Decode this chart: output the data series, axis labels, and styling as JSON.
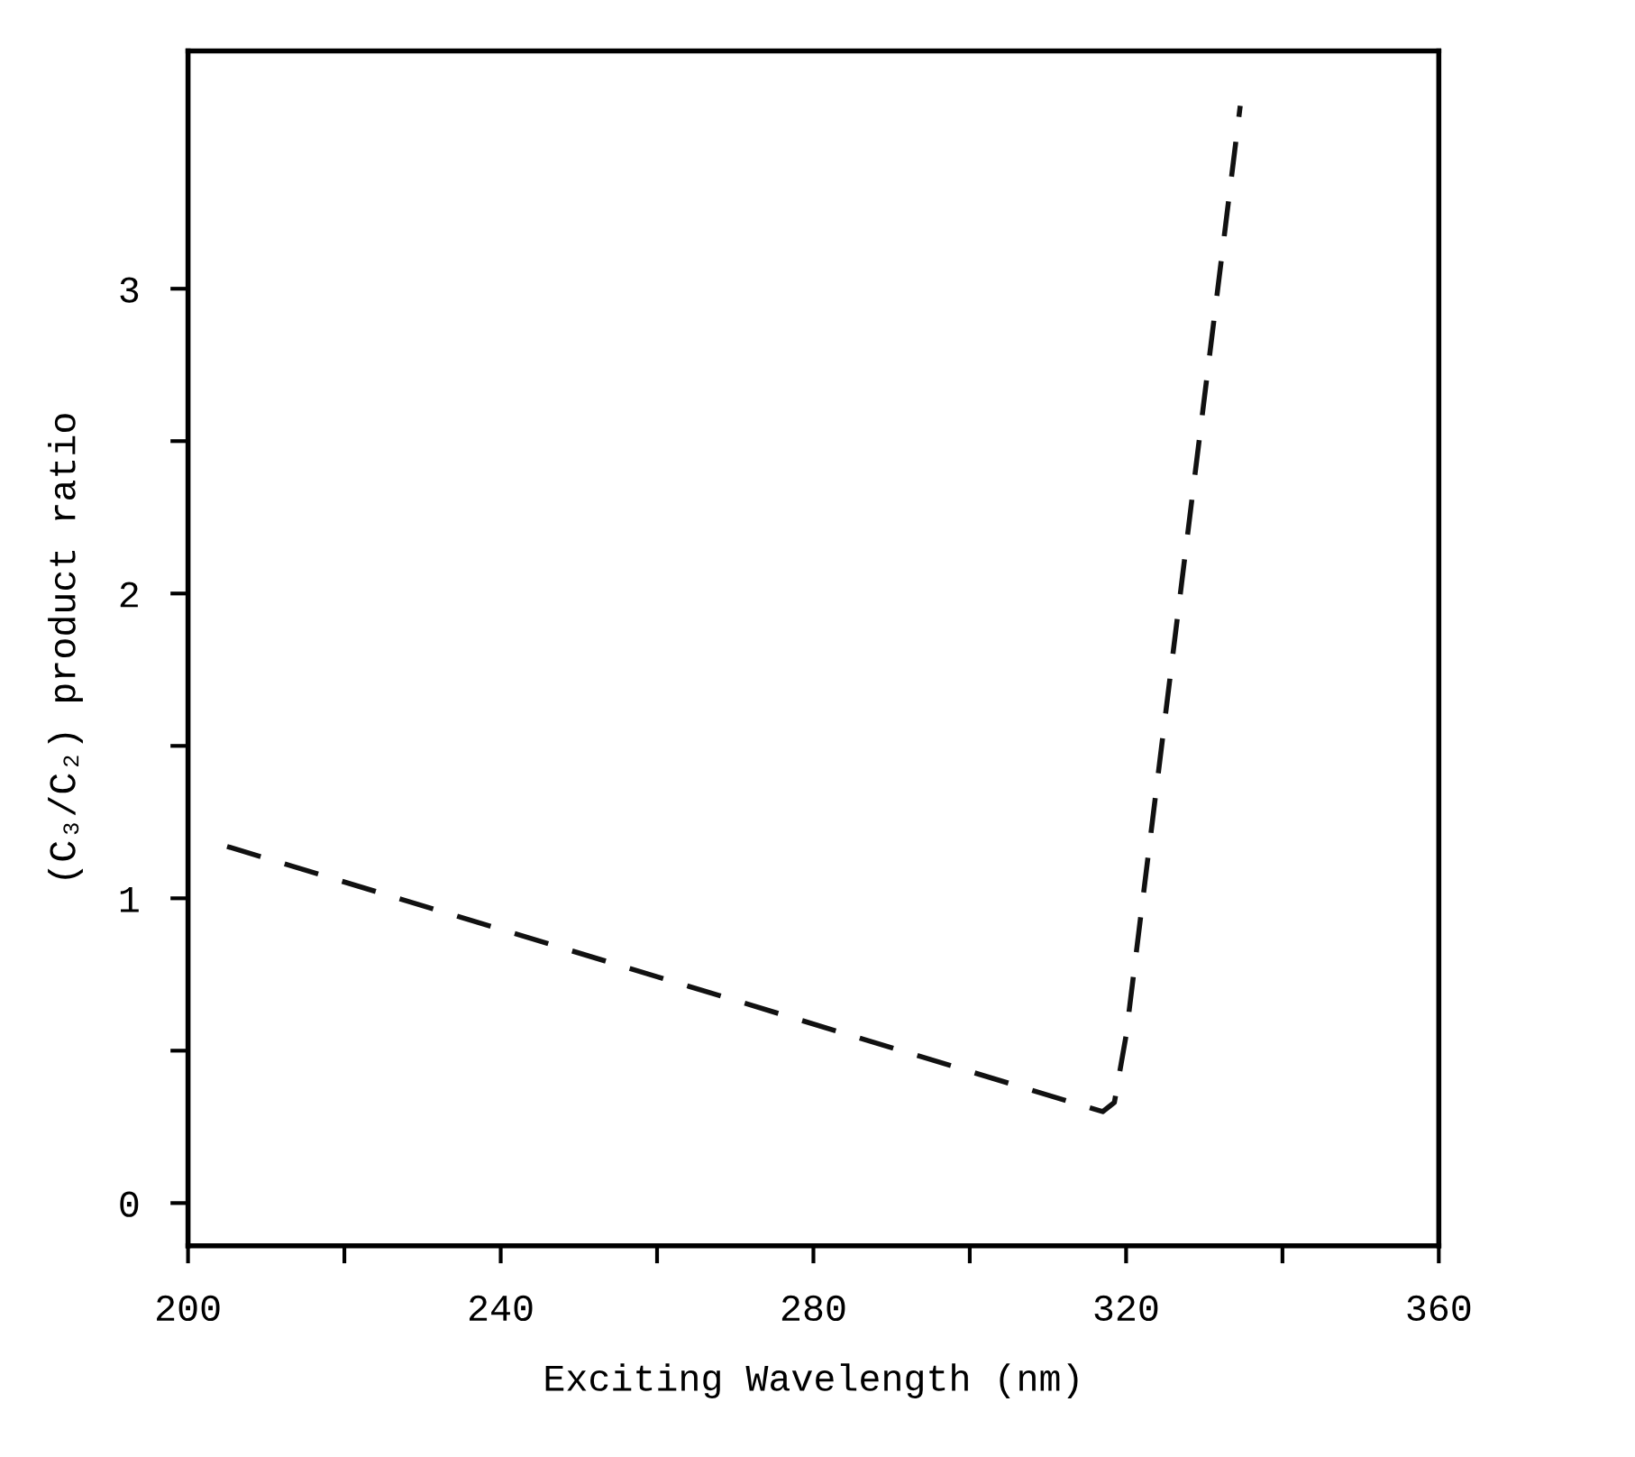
{
  "chart_data": {
    "type": "line",
    "xlabel": "Exciting Wavelength (nm)",
    "ylabel": "(C₃/C₂) product ratio",
    "x": [
      205,
      317,
      318.5,
      320,
      334.6
    ],
    "series": [
      {
        "color": "#111111",
        "values": [
          1.17,
          0.3,
          0.33,
          0.55,
          3.6
        ]
      }
    ],
    "xlim": [
      200,
      360
    ],
    "ylim": [
      -0.14,
      3.78
    ],
    "xticks": [
      200,
      {
        "value": 220,
        "label": null
      },
      240,
      {
        "value": 260,
        "label": null
      },
      280,
      {
        "value": 300,
        "label": null
      },
      320,
      {
        "value": 340,
        "label": null
      },
      360
    ],
    "yticks": [
      0,
      {
        "value": 0.5,
        "label": null
      },
      1,
      {
        "value": 1.5,
        "label": null
      },
      2,
      {
        "value": 2.5,
        "label": null
      },
      3
    ],
    "grid": false,
    "legend": false,
    "marker": "none",
    "line_style": "dashed"
  }
}
